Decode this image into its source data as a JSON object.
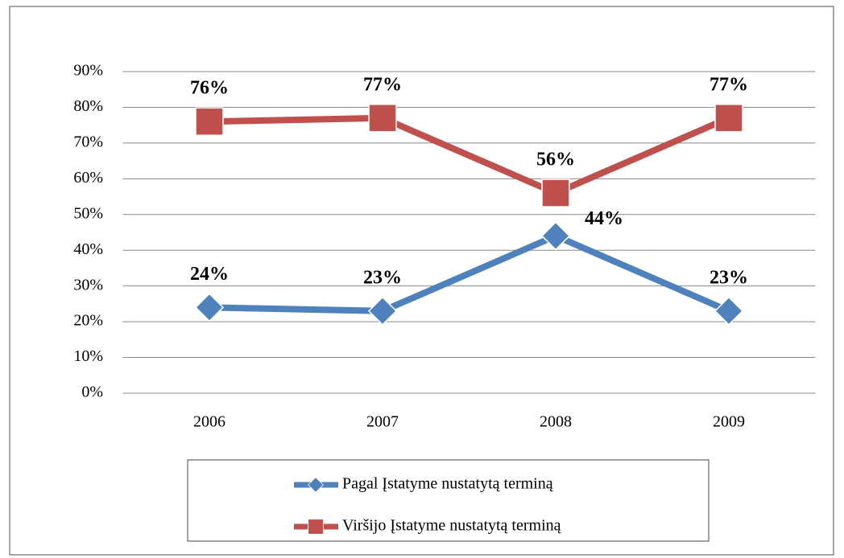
{
  "chart_data": {
    "type": "line",
    "categories": [
      "2006",
      "2007",
      "2008",
      "2009"
    ],
    "series": [
      {
        "name": "Pagal Įstatyme nustatytą terminą",
        "color": "#4f81bd",
        "marker": "diamond",
        "values": [
          24,
          23,
          44,
          23
        ],
        "value_labels": [
          "24%",
          "23%",
          "44%",
          "23%"
        ]
      },
      {
        "name": "Viršijo Įstatyme nustatytą terminą",
        "color": "#c0504d",
        "marker": "square",
        "values": [
          76,
          77,
          56,
          77
        ],
        "value_labels": [
          "76%",
          "77%",
          "56%",
          "77%"
        ]
      }
    ],
    "ylim": [
      0,
      90
    ],
    "yticks": [
      {
        "value": 0,
        "label": "0%"
      },
      {
        "value": 10,
        "label": "10%"
      },
      {
        "value": 20,
        "label": "20%"
      },
      {
        "value": 30,
        "label": "30%"
      },
      {
        "value": 40,
        "label": "40%"
      },
      {
        "value": 50,
        "label": "50%"
      },
      {
        "value": 60,
        "label": "60%"
      },
      {
        "value": 70,
        "label": "70%"
      },
      {
        "value": 80,
        "label": "80%"
      },
      {
        "value": 90,
        "label": "90%"
      }
    ],
    "grid": true,
    "legend": "bottom"
  }
}
